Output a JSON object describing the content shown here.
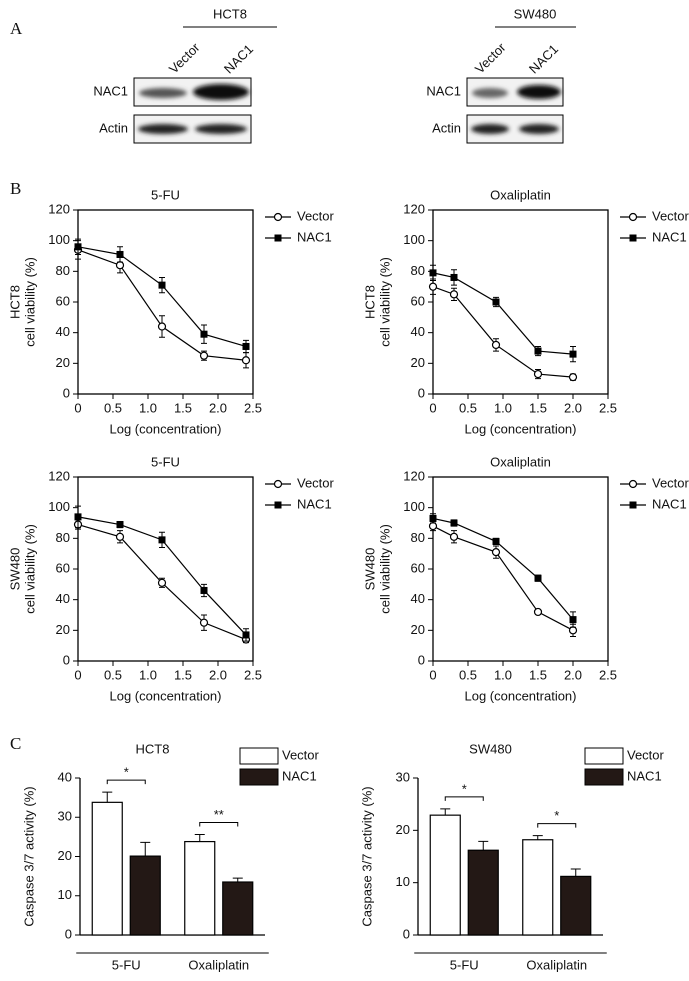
{
  "panels": [
    "A",
    "B",
    "C"
  ],
  "blots": [
    {
      "group": "HCT8",
      "lanes": [
        "Vector",
        "NAC1"
      ],
      "rows": [
        "NAC1",
        "Actin"
      ]
    },
    {
      "group": "SW480",
      "lanes": [
        "Vector",
        "NAC1"
      ],
      "rows": [
        "NAC1",
        "Actin"
      ]
    }
  ],
  "chart_data": [
    {
      "type": "line",
      "title": "5-FU",
      "ylabel": [
        "HCT8",
        "cell viability (%)"
      ],
      "xlabel": "Log (concentration)",
      "x": [
        0,
        0.6,
        1.2,
        1.8,
        2.4
      ],
      "xlim": [
        0,
        2.5
      ],
      "xticks": [
        0,
        0.5,
        {
          "value": 1,
          "label": "1.0"
        },
        1.5,
        {
          "value": 2,
          "label": "2.0"
        },
        2.5
      ],
      "ylim": [
        0,
        120
      ],
      "yticks": [
        0,
        20,
        40,
        60,
        80,
        100,
        120
      ],
      "series": [
        {
          "name": "Vector",
          "color": "#000000",
          "marker": "circle-open",
          "values": [
            94,
            84,
            44,
            25,
            22
          ],
          "errors": [
            6,
            5,
            7,
            3,
            5
          ]
        },
        {
          "name": "NAC1",
          "color": "#000000",
          "marker": "square",
          "values": [
            96,
            91,
            71,
            39,
            31
          ],
          "errors": [
            5,
            5,
            5,
            6,
            4
          ]
        }
      ]
    },
    {
      "type": "line",
      "title": "Oxaliplatin",
      "ylabel": [
        "HCT8",
        "cell viability (%)"
      ],
      "xlabel": "Log (concentration)",
      "x": [
        0,
        0.3,
        0.9,
        1.5,
        2.0
      ],
      "xlim": [
        0,
        2.5
      ],
      "xticks": [
        0,
        0.5,
        {
          "value": 1,
          "label": "1.0"
        },
        1.5,
        {
          "value": 2,
          "label": "2.0"
        },
        2.5
      ],
      "ylim": [
        0,
        120
      ],
      "yticks": [
        0,
        20,
        40,
        60,
        80,
        100,
        120
      ],
      "series": [
        {
          "name": "Vector",
          "color": "#000000",
          "marker": "circle-open",
          "values": [
            70,
            65,
            32,
            13,
            11
          ],
          "errors": [
            5,
            4,
            4,
            3,
            2
          ]
        },
        {
          "name": "NAC1",
          "color": "#000000",
          "marker": "square",
          "values": [
            79,
            76,
            60,
            28,
            26
          ],
          "errors": [
            5,
            5,
            3,
            3,
            5
          ]
        }
      ]
    },
    {
      "type": "line",
      "title": "5-FU",
      "ylabel": [
        "SW480",
        "cell viability (%)"
      ],
      "xlabel": "Log (concentration)",
      "x": [
        0,
        0.6,
        1.2,
        1.8,
        2.4
      ],
      "xlim": [
        0,
        2.5
      ],
      "xticks": [
        0,
        0.5,
        {
          "value": 1,
          "label": "1.0"
        },
        1.5,
        {
          "value": 2,
          "label": "2.0"
        },
        2.5
      ],
      "ylim": [
        0,
        120
      ],
      "yticks": [
        0,
        20,
        40,
        60,
        80,
        100,
        120
      ],
      "series": [
        {
          "name": "Vector",
          "color": "#000000",
          "marker": "circle-open",
          "values": [
            89,
            81,
            51,
            25,
            14
          ],
          "errors": [
            3,
            4,
            3,
            5,
            2
          ]
        },
        {
          "name": "NAC1",
          "color": "#000000",
          "marker": "square",
          "values": [
            94,
            89,
            79,
            46,
            17
          ],
          "errors": [
            7,
            2,
            5,
            4,
            4
          ]
        }
      ]
    },
    {
      "type": "line",
      "title": "Oxaliplatin",
      "ylabel": [
        "SW480",
        "cell viability (%)"
      ],
      "xlabel": "Log (concentration)",
      "x": [
        0,
        0.3,
        0.9,
        1.5,
        2.0
      ],
      "xlim": [
        0,
        2.5
      ],
      "xticks": [
        0,
        0.5,
        {
          "value": 1,
          "label": "1.0"
        },
        1.5,
        {
          "value": 2,
          "label": "2.0"
        },
        2.5
      ],
      "ylim": [
        0,
        120
      ],
      "yticks": [
        0,
        20,
        40,
        60,
        80,
        100,
        120
      ],
      "series": [
        {
          "name": "Vector",
          "color": "#000000",
          "marker": "circle-open",
          "values": [
            88,
            81,
            71,
            32,
            20
          ],
          "errors": [
            3,
            4,
            4,
            1,
            4
          ]
        },
        {
          "name": "NAC1",
          "color": "#000000",
          "marker": "square",
          "values": [
            93,
            90,
            78,
            54,
            27
          ],
          "errors": [
            3,
            2,
            2,
            2,
            5
          ]
        }
      ]
    },
    {
      "type": "bar",
      "title": "HCT8",
      "ylabel": "Caspase 3/7 activity (%)",
      "categories": [
        "5-FU",
        "Oxaliplatin"
      ],
      "ylim": [
        0,
        40
      ],
      "yticks": [
        0,
        10,
        20,
        30,
        40
      ],
      "annotations": [
        "*",
        "**"
      ],
      "series": [
        {
          "name": "Vector",
          "color": "#ffffff",
          "values": [
            33.8,
            23.8
          ],
          "errors": [
            2.6,
            1.8
          ]
        },
        {
          "name": "NAC1",
          "color": "#231815",
          "values": [
            20.1,
            13.5
          ],
          "errors": [
            3.5,
            1.0
          ]
        }
      ]
    },
    {
      "type": "bar",
      "title": "SW480",
      "ylabel": "Caspase 3/7 activity (%)",
      "categories": [
        "5-FU",
        "Oxaliplatin"
      ],
      "ylim": [
        0,
        30
      ],
      "yticks": [
        0,
        10,
        20,
        30
      ],
      "annotations": [
        "*",
        "*"
      ],
      "series": [
        {
          "name": "Vector",
          "color": "#ffffff",
          "values": [
            22.9,
            18.2
          ],
          "errors": [
            1.2,
            0.8
          ]
        },
        {
          "name": "NAC1",
          "color": "#231815",
          "values": [
            16.2,
            11.2
          ],
          "errors": [
            1.7,
            1.4
          ]
        }
      ]
    }
  ]
}
